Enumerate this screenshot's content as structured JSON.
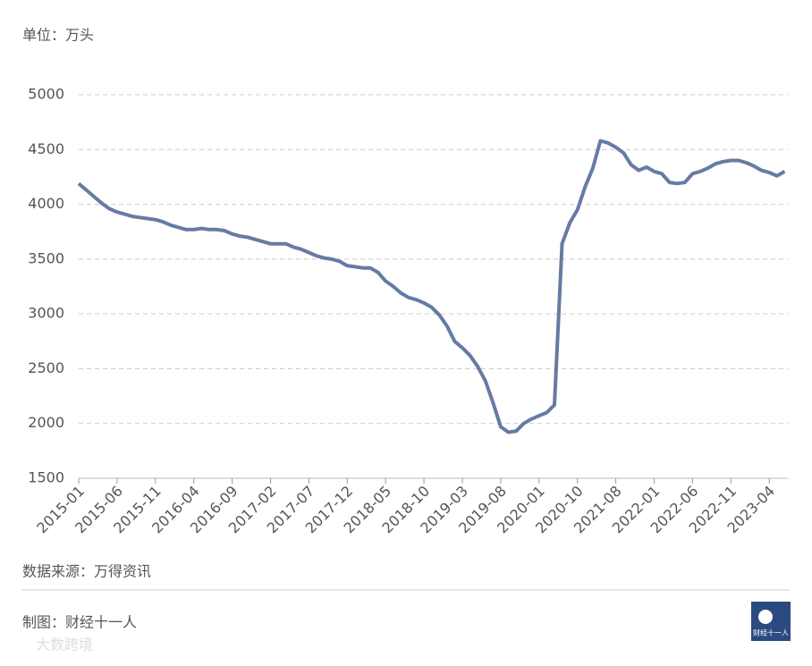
{
  "header": {
    "unit": "单位：万头"
  },
  "chart_data": {
    "type": "line",
    "categories": [
      "2015-01",
      null,
      null,
      null,
      null,
      "2015-06",
      null,
      null,
      null,
      null,
      "2015-11",
      null,
      null,
      null,
      null,
      "2016-04",
      null,
      null,
      null,
      null,
      "2016-09",
      null,
      null,
      null,
      null,
      "2017-02",
      null,
      null,
      null,
      null,
      "2017-07",
      null,
      null,
      null,
      null,
      "2017-12",
      null,
      null,
      null,
      null,
      "2018-05",
      null,
      null,
      null,
      null,
      "2018-10",
      null,
      null,
      null,
      null,
      "2019-03",
      null,
      null,
      null,
      null,
      "2019-08",
      null,
      null,
      null,
      null,
      "2020-01",
      null,
      null,
      null,
      null,
      "2020-10",
      null,
      null,
      null,
      null,
      "2021-08",
      null,
      null,
      null,
      null,
      "2022-01",
      null,
      null,
      null,
      null,
      "2022-06",
      null,
      null,
      null,
      null,
      "2022-11",
      null,
      null,
      null,
      null,
      "2023-04",
      null,
      null
    ],
    "series": [
      {
        "color": "#667ba3",
        "values": [
          4190,
          4130,
          4070,
          4010,
          3960,
          3930,
          3910,
          3890,
          3880,
          3870,
          3860,
          3840,
          3810,
          3790,
          3770,
          3770,
          3780,
          3770,
          3770,
          3760,
          3730,
          3710,
          3700,
          3680,
          3660,
          3640,
          3640,
          3640,
          3610,
          3590,
          3560,
          3530,
          3510,
          3500,
          3480,
          3440,
          3430,
          3420,
          3420,
          3380,
          3300,
          3250,
          3190,
          3150,
          3130,
          3100,
          3060,
          2990,
          2890,
          2750,
          2690,
          2620,
          2520,
          2390,
          2190,
          1970,
          1920,
          1930,
          2000,
          2040,
          2070,
          2100,
          2170,
          3640,
          3830,
          3950,
          4160,
          4330,
          4580,
          4560,
          4520,
          4470,
          4360,
          4310,
          4340,
          4300,
          4280,
          4200,
          4190,
          4200,
          4280,
          4300,
          4330,
          4370,
          4390,
          4400,
          4400,
          4380,
          4350,
          4310,
          4290,
          4260,
          4300
        ]
      }
    ],
    "ylim": [
      1500,
      5000
    ],
    "yticks": [
      1500,
      2000,
      2500,
      3000,
      3500,
      4000,
      4500,
      5000
    ],
    "grid": true
  },
  "footer": {
    "source": "数据来源：万得资讯",
    "credit": "制图：财经十一人",
    "logo": "财经十一人",
    "watermark": "大数跨境"
  }
}
